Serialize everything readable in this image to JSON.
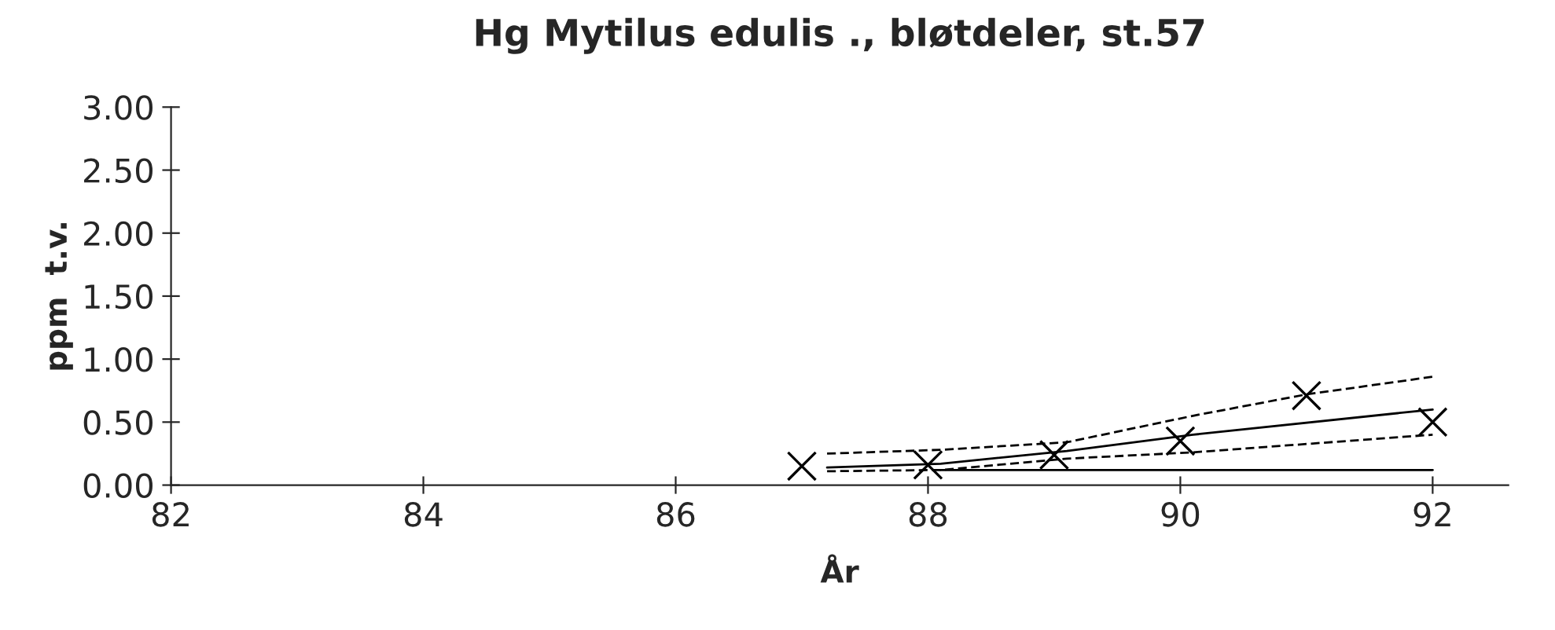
{
  "chart_data": {
    "type": "scatter",
    "title": "Hg Mytilus edulis ., bløtdeler, st.57",
    "xlabel": "År",
    "ylabel": "ppm  t.v.",
    "x": [
      87,
      88,
      89,
      90,
      91,
      92
    ],
    "xlim": [
      82,
      92.6
    ],
    "xticks": [
      82,
      84,
      86,
      88,
      90,
      92
    ],
    "ylim": [
      0,
      3
    ],
    "yticks": [
      {
        "value": 0,
        "label": "0.00"
      },
      {
        "value": 0.5,
        "label": "0.50"
      },
      {
        "value": 1,
        "label": "1.00"
      },
      {
        "value": 1.5,
        "label": "1.50"
      },
      {
        "value": 2,
        "label": "2.00"
      },
      {
        "value": 2.5,
        "label": "2.50"
      },
      {
        "value": 3,
        "label": "3.00"
      }
    ],
    "grid": false,
    "legend": false,
    "series": [
      {
        "color": "#000000",
        "marker": "cross",
        "values": [
          0.15,
          0.16,
          0.24,
          0.35,
          0.71,
          0.5
        ]
      },
      {
        "type": "line",
        "color": "#000000",
        "line_style": "solid",
        "x": [
          87.2,
          88.1,
          89.1,
          90.1,
          92
        ],
        "values": [
          0.14,
          0.17,
          0.27,
          0.4,
          0.6
        ]
      },
      {
        "type": "line",
        "color": "#000000",
        "line_style": "dashed",
        "x": [
          87.2,
          88.1,
          89.1,
          90.1,
          91,
          92
        ],
        "values": [
          0.25,
          0.28,
          0.34,
          0.55,
          0.72,
          0.86
        ]
      },
      {
        "type": "line",
        "color": "#000000",
        "line_style": "dashed",
        "x": [
          87.2,
          88.1,
          89.1,
          90.1,
          92
        ],
        "values": [
          0.11,
          0.12,
          0.21,
          0.26,
          0.4
        ]
      },
      {
        "type": "line",
        "color": "#000000",
        "line_style": "solid",
        "x": [
          88.1,
          92
        ],
        "values": [
          0.12,
          0.12
        ]
      }
    ]
  }
}
